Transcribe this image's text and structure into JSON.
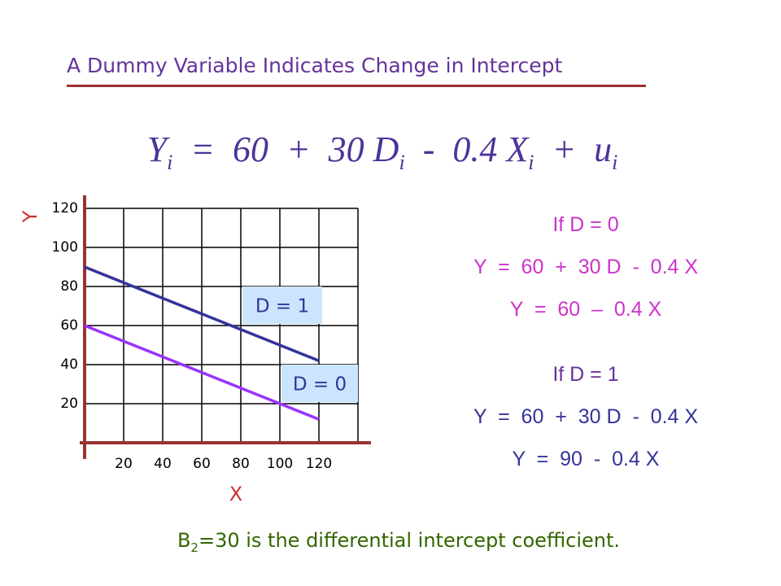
{
  "header": {
    "title": "A Dummy Variable Indicates Change in Intercept"
  },
  "equation": {
    "parts": [
      {
        "t": "Y",
        "s": "i"
      },
      {
        "t": "  =  60  +  30 D",
        "s": "i"
      },
      {
        "t": "  -  0.4 X",
        "s": "i"
      },
      {
        "t": "  +  u",
        "s": "i"
      }
    ]
  },
  "chart_data": {
    "type": "line",
    "x_label": "X",
    "y_label": "Y",
    "series": [
      {
        "name": "D = 1",
        "color": "#333399",
        "x": [
          0,
          120
        ],
        "values": [
          90,
          42
        ]
      },
      {
        "name": "D = 0",
        "color": "#9933ff",
        "x": [
          0,
          120
        ],
        "values": [
          60,
          12
        ]
      }
    ],
    "xlim": [
      0,
      140
    ],
    "ylim": [
      0,
      120
    ],
    "xticks": [
      20,
      40,
      60,
      80,
      100,
      120
    ],
    "yticks": [
      20,
      40,
      60,
      80,
      100,
      120
    ],
    "grid": true
  },
  "cases": [
    {
      "condition": "If D = 0",
      "general": "Y  =  60  +  30 D  -  0.4 X",
      "result": "Y  =  60  –  0.4 X"
    },
    {
      "condition": "If D = 1",
      "general": "Y  =  60  +  30 D  -  0.4 X",
      "result": "Y  =  90  -  0.4 X"
    }
  ],
  "footer": {
    "parts": [
      "B",
      "2",
      "=30 is the differential intercept coefficient."
    ]
  }
}
